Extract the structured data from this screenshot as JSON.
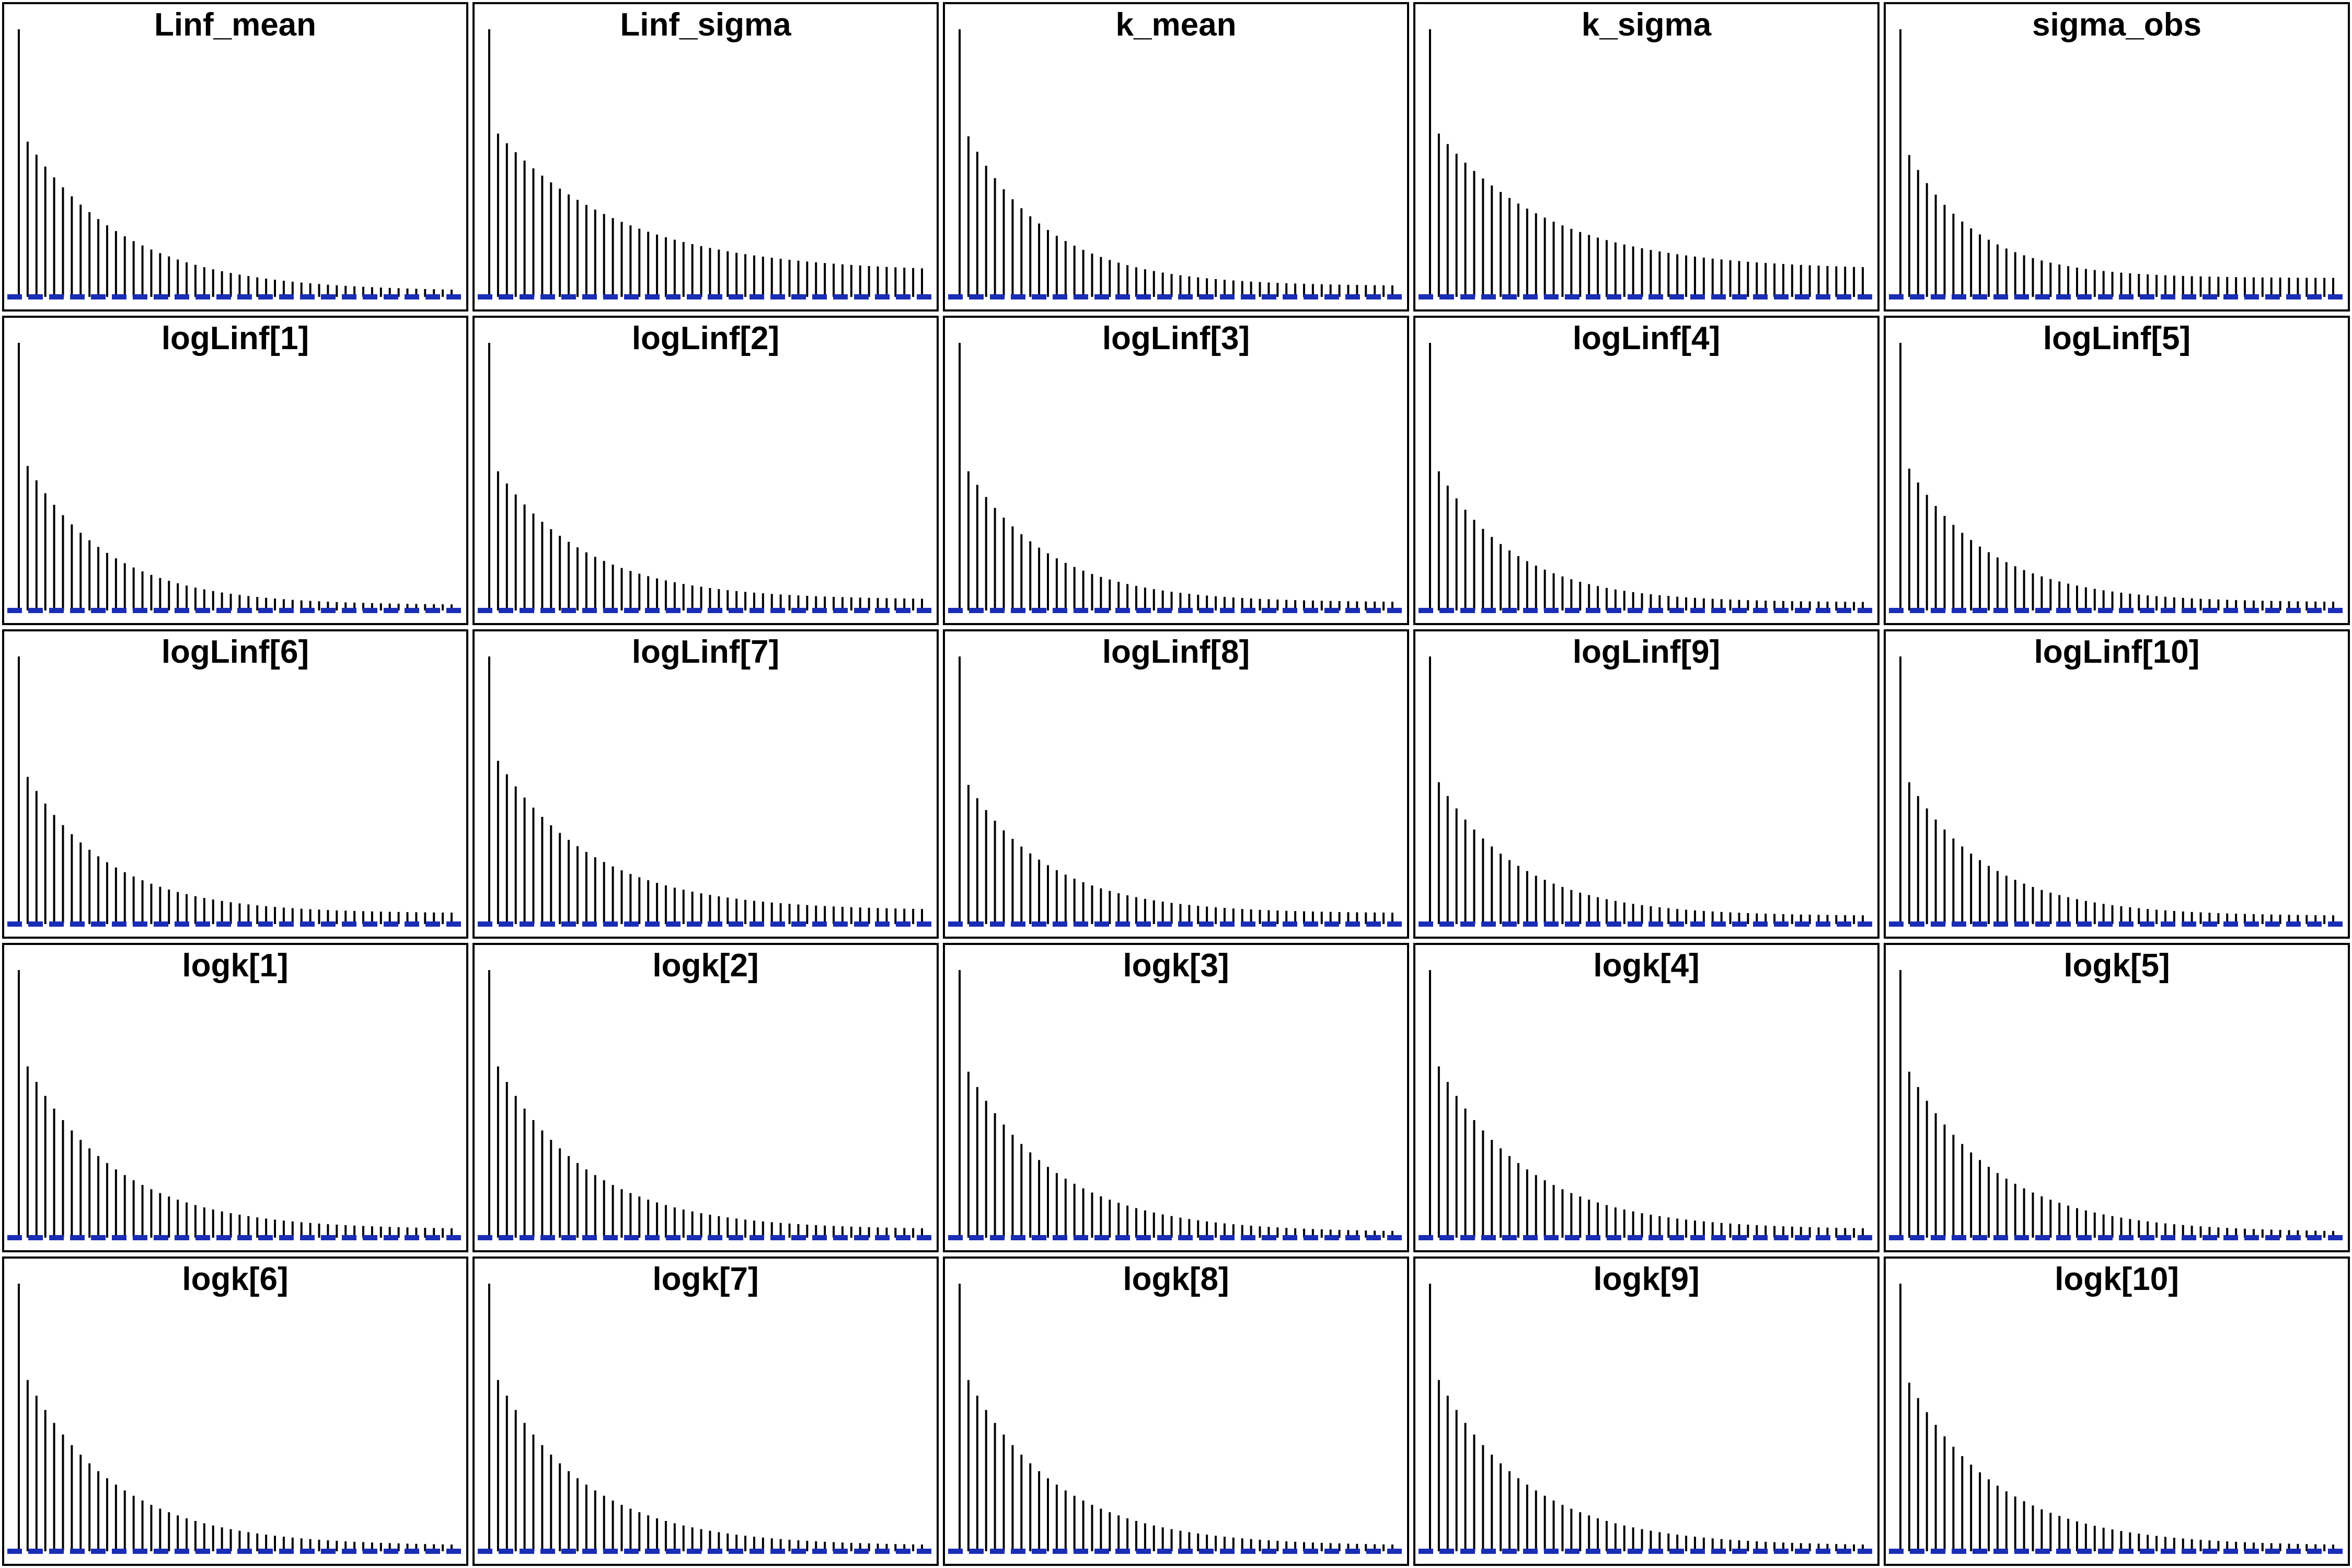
{
  "chart_data": {
    "type": "bar",
    "layout": "5x5 grid of autocorrelation panels",
    "lags": 50,
    "ylim": [
      0,
      1
    ],
    "grid": false,
    "reference_line_color": "#1a2db5",
    "bar_color": "#000000",
    "panels": [
      {
        "title": "Linf_mean",
        "rho": 0.58,
        "lag1": 0.58,
        "floor": 0.02
      },
      {
        "title": "Linf_sigma",
        "rho": 0.65,
        "lag1": 0.61,
        "floor": 0.09
      },
      {
        "title": "k_mean",
        "rho": 0.52,
        "lag1": 0.6,
        "floor": 0.04
      },
      {
        "title": "k_sigma",
        "rho": 0.62,
        "lag1": 0.61,
        "floor": 0.1
      },
      {
        "title": "sigma_obs",
        "rho": 0.46,
        "lag1": 0.53,
        "floor": 0.07
      },
      {
        "title": "logLinf[1]",
        "rho": 0.52,
        "lag1": 0.54,
        "floor": 0.02
      },
      {
        "title": "logLinf[2]",
        "rho": 0.55,
        "lag1": 0.52,
        "floor": 0.04
      },
      {
        "title": "logLinf[3]",
        "rho": 0.52,
        "lag1": 0.52,
        "floor": 0.03
      },
      {
        "title": "logLinf[4]",
        "rho": 0.5,
        "lag1": 0.52,
        "floor": 0.03
      },
      {
        "title": "logLinf[5]",
        "rho": 0.52,
        "lag1": 0.53,
        "floor": 0.03
      },
      {
        "title": "logLinf[6]",
        "rho": 0.52,
        "lag1": 0.55,
        "floor": 0.04
      },
      {
        "title": "logLinf[7]",
        "rho": 0.57,
        "lag1": 0.61,
        "floor": 0.05
      },
      {
        "title": "logLinf[8]",
        "rho": 0.52,
        "lag1": 0.52,
        "floor": 0.04
      },
      {
        "title": "logLinf[9]",
        "rho": 0.52,
        "lag1": 0.53,
        "floor": 0.03
      },
      {
        "title": "logLinf[10]",
        "rho": 0.52,
        "lag1": 0.53,
        "floor": 0.03
      },
      {
        "title": "logk[1]",
        "rho": 0.55,
        "lag1": 0.64,
        "floor": 0.03
      },
      {
        "title": "logk[2]",
        "rho": 0.55,
        "lag1": 0.64,
        "floor": 0.03
      },
      {
        "title": "logk[3]",
        "rho": 0.55,
        "lag1": 0.62,
        "floor": 0.02
      },
      {
        "title": "logk[4]",
        "rho": 0.55,
        "lag1": 0.64,
        "floor": 0.03
      },
      {
        "title": "logk[5]",
        "rho": 0.55,
        "lag1": 0.62,
        "floor": 0.02
      },
      {
        "title": "logk[6]",
        "rho": 0.55,
        "lag1": 0.64,
        "floor": 0.02
      },
      {
        "title": "logk[7]",
        "rho": 0.55,
        "lag1": 0.64,
        "floor": 0.02
      },
      {
        "title": "logk[8]",
        "rho": 0.55,
        "lag1": 0.64,
        "floor": 0.02
      },
      {
        "title": "logk[9]",
        "rho": 0.55,
        "lag1": 0.64,
        "floor": 0.02
      },
      {
        "title": "logk[10]",
        "rho": 0.55,
        "lag1": 0.63,
        "floor": 0.02
      }
    ]
  }
}
